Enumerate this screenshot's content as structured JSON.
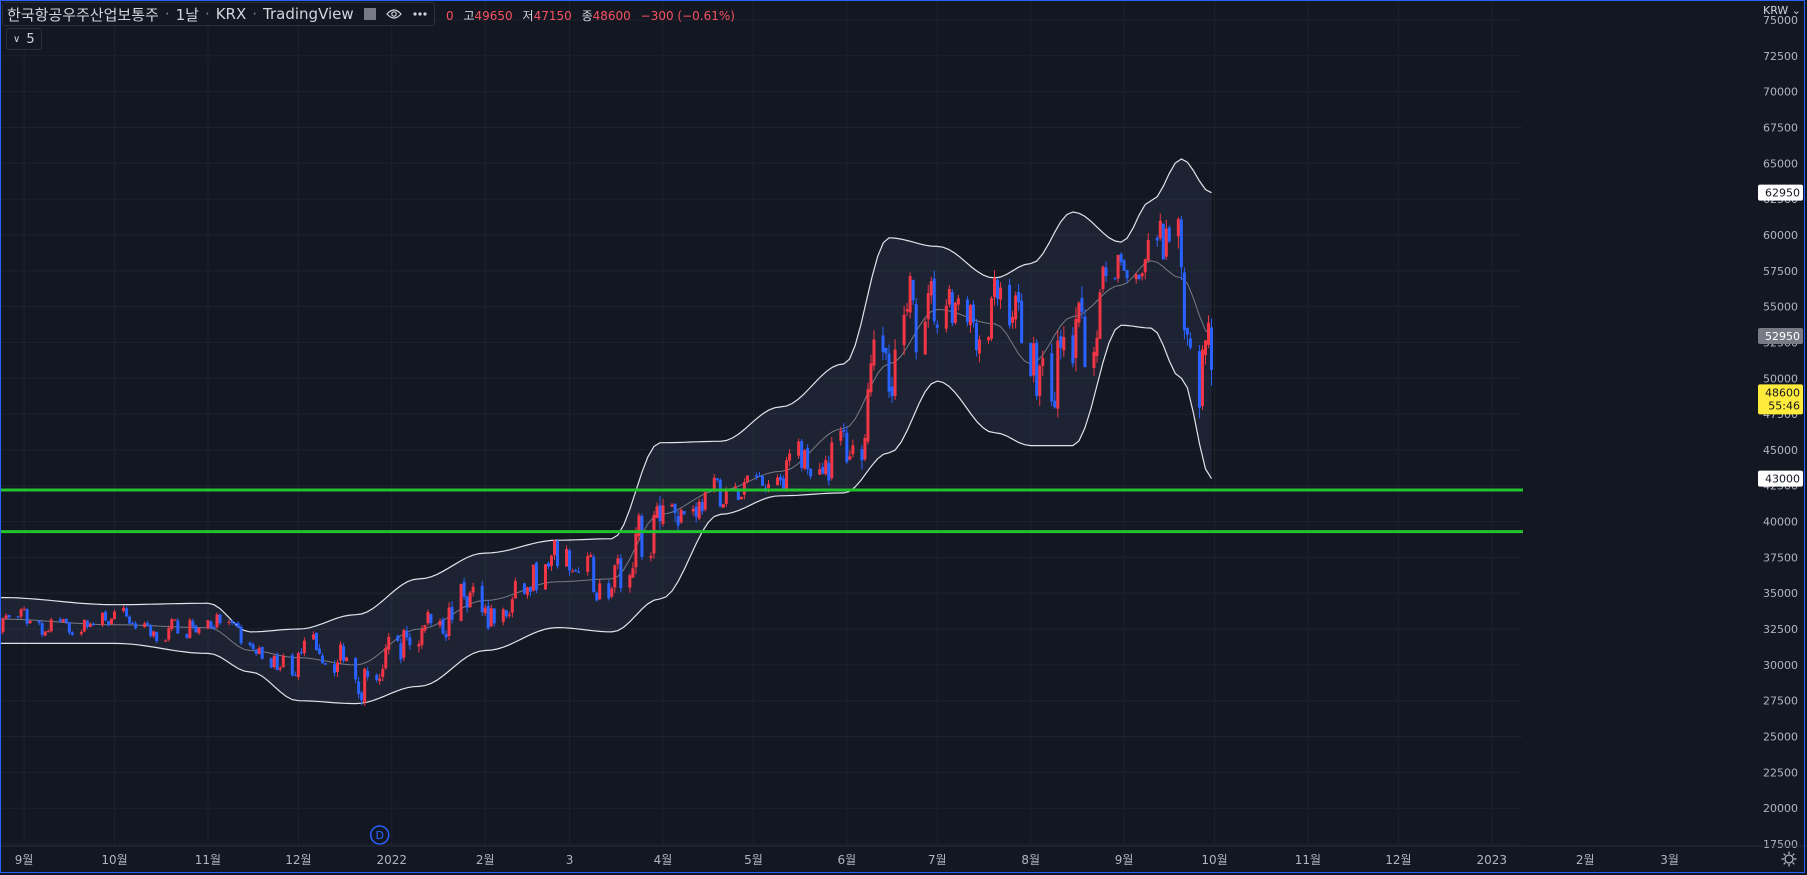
{
  "header": {
    "symbol_title": "한국항공우주산업보통주",
    "interval": "1날",
    "exchange": "KRX",
    "source": "TradingView",
    "ohlc_prefix": "0",
    "high_label": "고",
    "high_value": "49650",
    "low_label": "저",
    "low_value": "47150",
    "close_label": "종",
    "close_value": "48600",
    "change": "−300 (−0.61%)"
  },
  "indicator_toggle": {
    "label": "5"
  },
  "currency": "KRW",
  "icons": {
    "visibility": "eye-icon",
    "more": "more-icon",
    "collapse": "chevron-down-icon",
    "settings": "gear-icon",
    "dividend_marker": "D"
  },
  "colors": {
    "background": "#131722",
    "up": "#f23645",
    "down": "#2962ff",
    "band_line": "#e0e3eb",
    "basis_line": "#787b86",
    "band_fill": "rgba(120,150,200,0.10)",
    "support_lines": "#22c32e",
    "grid": "#1e222d"
  },
  "chart_data": {
    "type": "candlestick",
    "overlay": "bollinger bands",
    "yaxis": {
      "ticks": [
        17500,
        20000,
        22500,
        25000,
        27500,
        30000,
        32500,
        35000,
        37500,
        40000,
        42500,
        45000,
        47500,
        50000,
        52500,
        55000,
        57500,
        60000,
        62500,
        65000,
        67500,
        70000,
        72500,
        75000
      ],
      "ylim": [
        17500,
        75000
      ]
    },
    "xaxis": {
      "ticks": [
        "9월",
        "10월",
        "11월",
        "12월",
        "2022",
        "2월",
        "3",
        "4월",
        "5월",
        "6월",
        "7월",
        "8월",
        "9월",
        "10월",
        "11월",
        "12월",
        "2023",
        "2월",
        "3월"
      ],
      "range": [
        "2021-08-24",
        "2023-03-31"
      ]
    },
    "price_labels": [
      {
        "value": 62950,
        "text": "62950",
        "kind": "upper_band"
      },
      {
        "value": 52950,
        "text": "52950",
        "kind": "basis"
      },
      {
        "value": 48600,
        "text": "48600",
        "sub": "55:46",
        "kind": "last_price"
      },
      {
        "value": 43000,
        "text": "43000",
        "kind": "lower_band"
      }
    ],
    "horizontal_lines": [
      42200,
      39300
    ],
    "dividend_marker": {
      "date": "2021-12-28"
    },
    "monthly_closes": [
      [
        "2021-08",
        32500
      ],
      [
        "2021-09",
        32000
      ],
      [
        "2021-10",
        33200
      ],
      [
        "2021-11",
        29500
      ],
      [
        "2021-12",
        31500
      ],
      [
        "2022-01",
        36500
      ],
      [
        "2022-02",
        34000
      ],
      [
        "2022-03",
        43000
      ],
      [
        "2022-04",
        43500
      ],
      [
        "2022-05",
        52000
      ],
      [
        "2022-06",
        54500
      ],
      [
        "2022-07",
        51000
      ],
      [
        "2022-08",
        56500
      ],
      [
        "2022-09",
        52000
      ],
      [
        "2022-10",
        48600
      ]
    ],
    "bands_sample": [
      {
        "date": "2021-08-24",
        "upper": 34700,
        "basis": 33200,
        "lower": 31500
      },
      {
        "date": "2021-10-01",
        "upper": 34200,
        "basis": 32800,
        "lower": 31500
      },
      {
        "date": "2021-11-01",
        "upper": 34300,
        "basis": 32600,
        "lower": 30800
      },
      {
        "date": "2021-11-15",
        "upper": 32300,
        "basis": 31000,
        "lower": 29500
      },
      {
        "date": "2021-12-01",
        "upper": 32500,
        "basis": 30500,
        "lower": 27500
      },
      {
        "date": "2021-12-20",
        "upper": 33500,
        "basis": 30000,
        "lower": 27300
      },
      {
        "date": "2022-01-10",
        "upper": 36000,
        "basis": 32500,
        "lower": 28500
      },
      {
        "date": "2022-02-01",
        "upper": 37800,
        "basis": 34500,
        "lower": 31000
      },
      {
        "date": "2022-02-25",
        "upper": 38700,
        "basis": 35800,
        "lower": 32600
      },
      {
        "date": "2022-03-15",
        "upper": 38800,
        "basis": 36000,
        "lower": 32300
      },
      {
        "date": "2022-03-31",
        "upper": 45500,
        "basis": 40500,
        "lower": 34600
      },
      {
        "date": "2022-04-20",
        "upper": 45600,
        "basis": 42200,
        "lower": 40500
      },
      {
        "date": "2022-05-10",
        "upper": 48000,
        "basis": 43500,
        "lower": 41800
      },
      {
        "date": "2022-05-31",
        "upper": 51000,
        "basis": 46500,
        "lower": 42000
      },
      {
        "date": "2022-06-15",
        "upper": 59800,
        "basis": 51000,
        "lower": 44800
      },
      {
        "date": "2022-07-01",
        "upper": 59200,
        "basis": 54800,
        "lower": 49800
      },
      {
        "date": "2022-07-20",
        "upper": 57000,
        "basis": 53800,
        "lower": 46200
      },
      {
        "date": "2022-08-01",
        "upper": 58000,
        "basis": 51000,
        "lower": 45300
      },
      {
        "date": "2022-08-15",
        "upper": 61600,
        "basis": 54300,
        "lower": 45300
      },
      {
        "date": "2022-08-31",
        "upper": 59500,
        "basis": 56500,
        "lower": 53700
      },
      {
        "date": "2022-09-10",
        "upper": 62400,
        "basis": 58200,
        "lower": 53500
      },
      {
        "date": "2022-09-20",
        "upper": 65300,
        "basis": 57000,
        "lower": 50000
      },
      {
        "date": "2022-09-30",
        "upper": 62950,
        "basis": 52950,
        "lower": 43000
      }
    ]
  }
}
